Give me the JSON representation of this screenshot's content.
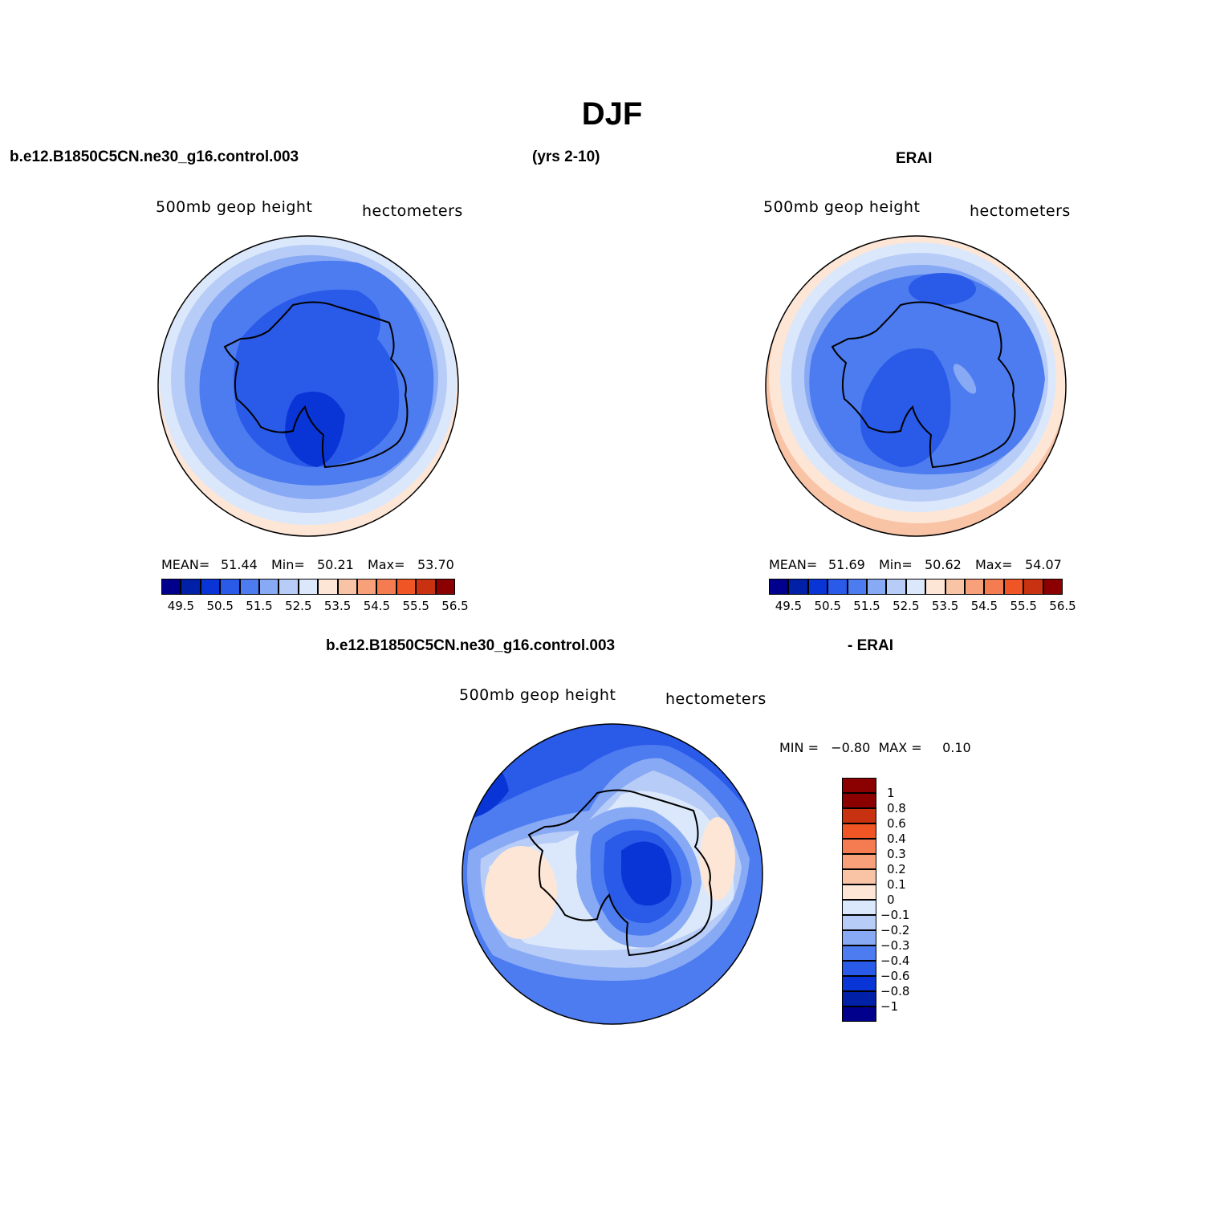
{
  "title": "DJF",
  "top_left": {
    "case_name": "b.e12.B1850C5CN.ne30_g16.control.003",
    "years": "(yrs 2-10)",
    "var_label": "500mb  geop  height",
    "units": "hectometers",
    "stats": {
      "mean_label": "MEAN=",
      "mean": "51.44",
      "min_label": "Min=",
      "min": "50.21",
      "max_label": "Max=",
      "max": "53.70"
    }
  },
  "top_right": {
    "case_name": "ERAI",
    "var_label": "500mb  geop  height",
    "units": "hectometers",
    "stats": {
      "mean_label": "MEAN=",
      "mean": "51.69",
      "min_label": "Min=",
      "min": "50.62",
      "max_label": "Max=",
      "max": "54.07"
    }
  },
  "bottom": {
    "case_name": "b.e12.B1850C5CN.ne30_g16.control.003",
    "minus_label": "- ERAI",
    "var_label": "500mb  geop  height",
    "units": "hectometers",
    "minmax": "MIN =   −0.80  MAX =     0.10"
  },
  "colorbar_main": {
    "colors": [
      "#00008c",
      "#0020a8",
      "#0a35d6",
      "#2a5ae8",
      "#4d7cf0",
      "#88aaf5",
      "#b8ccf8",
      "#dbe8fb",
      "#fde6d6",
      "#f9c3a6",
      "#f8a07a",
      "#f47c50",
      "#ef5525",
      "#c83210",
      "#8b0000"
    ],
    "labels": [
      "49.5",
      "50.5",
      "51.5",
      "52.5",
      "53.5",
      "54.5",
      "55.5",
      "56.5"
    ]
  },
  "colorbar_diff": {
    "colors": [
      "#00008c",
      "#0020a8",
      "#0a35d6",
      "#2a5ae8",
      "#4d7cf0",
      "#88aaf5",
      "#b8ccf8",
      "#dbe8fb",
      "#fde6d6",
      "#f9c3a6",
      "#f8a07a",
      "#f47c50",
      "#ef5525",
      "#c83210",
      "#8b0000"
    ],
    "labels": [
      "1",
      "0.8",
      "0.6",
      "0.4",
      "0.3",
      "0.2",
      "0.1",
      "0",
      "−0.1",
      "−0.2",
      "−0.3",
      "−0.4",
      "−0.6",
      "−0.8",
      "−1"
    ]
  }
}
